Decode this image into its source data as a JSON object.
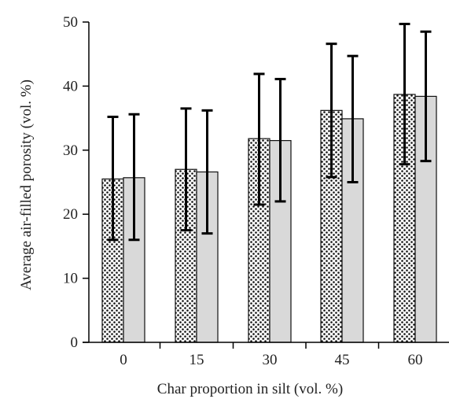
{
  "chart_data": {
    "type": "bar",
    "title": "",
    "xlabel": "Char proportion in silt (vol. %)",
    "ylabel": "Average air-filled porosity (vol. %)",
    "categories": [
      "0",
      "15",
      "30",
      "45",
      "60"
    ],
    "ylim": [
      0,
      50
    ],
    "yticks": [
      0,
      10,
      20,
      30,
      40,
      50
    ],
    "grid": false,
    "legend": "none",
    "series": [
      {
        "pattern": "dotted",
        "color": "#ffffff",
        "values": [
          25.5,
          27.0,
          31.8,
          36.2,
          38.7
        ],
        "error_low": [
          16.0,
          17.5,
          21.5,
          25.8,
          27.8
        ],
        "error_high": [
          35.2,
          36.5,
          41.9,
          46.6,
          49.7
        ]
      },
      {
        "pattern": "solid",
        "color": "#d9d9d9",
        "values": [
          25.7,
          26.6,
          31.5,
          34.9,
          38.4
        ],
        "error_low": [
          16.0,
          17.0,
          22.0,
          25.0,
          28.3
        ],
        "error_high": [
          35.6,
          36.2,
          41.1,
          44.7,
          48.5
        ]
      }
    ]
  }
}
